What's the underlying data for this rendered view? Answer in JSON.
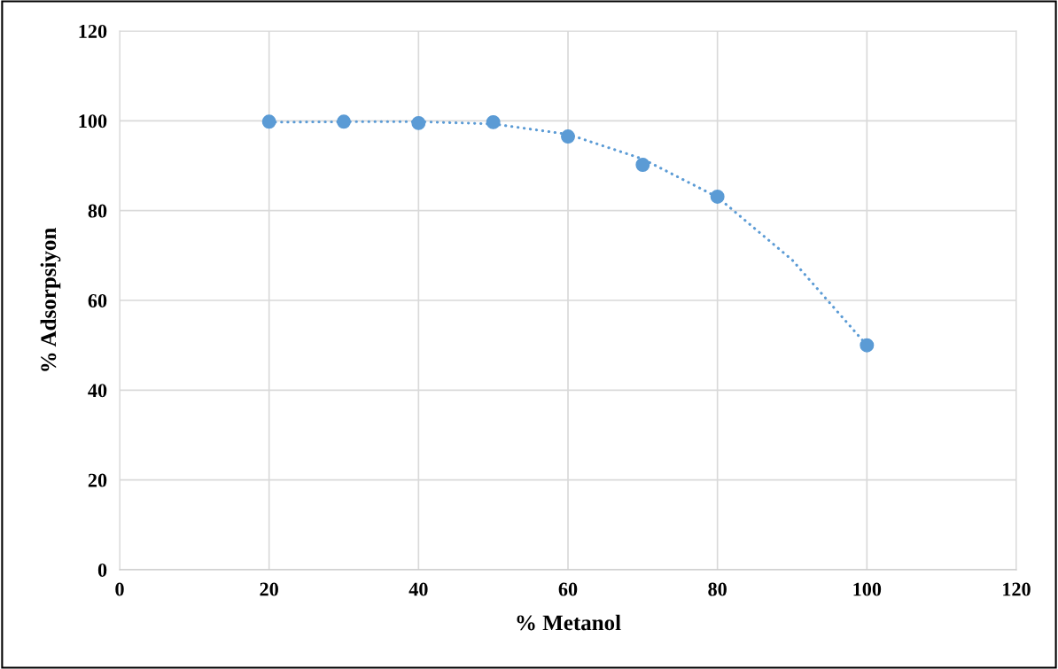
{
  "chart_data": {
    "type": "scatter",
    "xlabel": "% Metanol",
    "ylabel": "% Adsorpsiyon",
    "xlim": [
      0,
      120
    ],
    "xticks": [
      0,
      20,
      40,
      60,
      80,
      100,
      120
    ],
    "ylim": [
      0,
      120
    ],
    "yticks": [
      0,
      20,
      40,
      60,
      80,
      100,
      120
    ],
    "grid": true,
    "series": [
      {
        "marker": "circle",
        "color": "#5b9bd5",
        "x": [
          20,
          30,
          40,
          50,
          60,
          70,
          80,
          100
        ],
        "values": [
          99.8,
          99.8,
          99.5,
          99.7,
          96.5,
          90.2,
          83.1,
          50
        ]
      },
      {
        "type": "line",
        "marker": "none",
        "color": "#5b9bd5",
        "line_style": "dotted",
        "x": [
          20,
          30,
          40,
          50,
          60,
          70,
          80,
          90,
          100
        ],
        "values": [
          99.7,
          99.8,
          99.8,
          99.3,
          97,
          91.5,
          83,
          69,
          50
        ]
      }
    ]
  }
}
